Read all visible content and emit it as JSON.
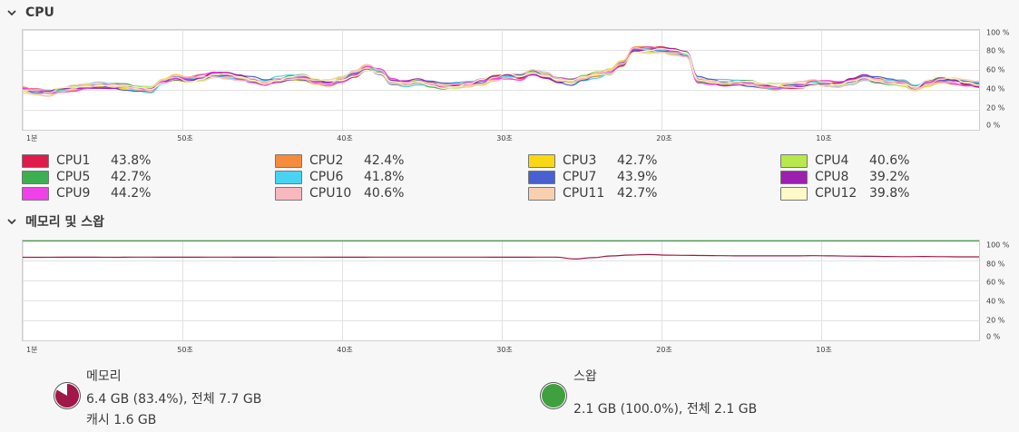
{
  "cpu": {
    "title": "CPU",
    "y_ticks": [
      "100 %",
      "80 %",
      "60 %",
      "40 %",
      "20 %",
      "0 %"
    ],
    "x_ticks": [
      "1분",
      "50초",
      "40초",
      "30초",
      "20초",
      "10초"
    ],
    "cores": [
      {
        "name": "CPU1",
        "percent": "43.8%",
        "color": "#e01b4c"
      },
      {
        "name": "CPU2",
        "percent": "42.4%",
        "color": "#f58c3c"
      },
      {
        "name": "CPU3",
        "percent": "42.7%",
        "color": "#f8d814"
      },
      {
        "name": "CPU4",
        "percent": "40.6%",
        "color": "#b8e84c"
      },
      {
        "name": "CPU5",
        "percent": "42.7%",
        "color": "#3cb050"
      },
      {
        "name": "CPU6",
        "percent": "41.8%",
        "color": "#48d4f0"
      },
      {
        "name": "CPU7",
        "percent": "43.9%",
        "color": "#4860d0"
      },
      {
        "name": "CPU8",
        "percent": "39.2%",
        "color": "#9c20b0"
      },
      {
        "name": "CPU9",
        "percent": "44.2%",
        "color": "#f040e8"
      },
      {
        "name": "CPU10",
        "percent": "40.6%",
        "color": "#f8b8c0"
      },
      {
        "name": "CPU11",
        "percent": "42.7%",
        "color": "#f8d0b0"
      },
      {
        "name": "CPU12",
        "percent": "39.8%",
        "color": "#fff8c8"
      }
    ],
    "history_percent_base": [
      40,
      38,
      37,
      40,
      42,
      44,
      45,
      44,
      43,
      41,
      40,
      48,
      52,
      50,
      52,
      55,
      54,
      52,
      50,
      47,
      50,
      52,
      52,
      48,
      47,
      50,
      56,
      62,
      58,
      48,
      46,
      48,
      46,
      44,
      45,
      46,
      48,
      52,
      54,
      53,
      58,
      55,
      50,
      48,
      52,
      55,
      58,
      66,
      80,
      80,
      80,
      78,
      76,
      50,
      48,
      47,
      47,
      46,
      44,
      43,
      44,
      45,
      47,
      46,
      45,
      48,
      52,
      50,
      48,
      47,
      42,
      47,
      50,
      49,
      47,
      46
    ]
  },
  "memory_swap": {
    "title": "메모리 및 스왑",
    "y_ticks": [
      "100 %",
      "80 %",
      "60 %",
      "40 %",
      "20 %",
      "0 %"
    ],
    "x_ticks": [
      "1분",
      "50초",
      "40초",
      "30초",
      "20초",
      "10초"
    ],
    "memory_history_percent": [
      83.2,
      83.2,
      83.3,
      83.3,
      83.3,
      83.2,
      83.4,
      83.4,
      83.3,
      83.3,
      83.4,
      83.4,
      83.3,
      83.3,
      83.4,
      83.4,
      83.4,
      83.3,
      83.3,
      83.4,
      83.4,
      83.4,
      83.4,
      83.4,
      83.4,
      83.4,
      83.3,
      83.3,
      83.4,
      83.4,
      81.5,
      82.8,
      84.5,
      85.5,
      86.0,
      85.4,
      85.2,
      85.0,
      84.8,
      84.6,
      84.6,
      84.6,
      84.6,
      84.8,
      84.6,
      84.4,
      84.2,
      84.0,
      83.8,
      84.0,
      83.8,
      83.6,
      83.6
    ],
    "swap_history_percent": 100,
    "memory_color": "#a01848",
    "swap_color": "#40a040",
    "memory": {
      "label": "메모리",
      "usage": "6.4 GB (83.4%), 전체 7.7 GB",
      "cache": "캐시 1.6 GB",
      "percent": 83.4
    },
    "swap": {
      "label": "스왑",
      "usage": "2.1 GB (100.0%), 전체 2.1 GB",
      "percent": 100
    }
  }
}
